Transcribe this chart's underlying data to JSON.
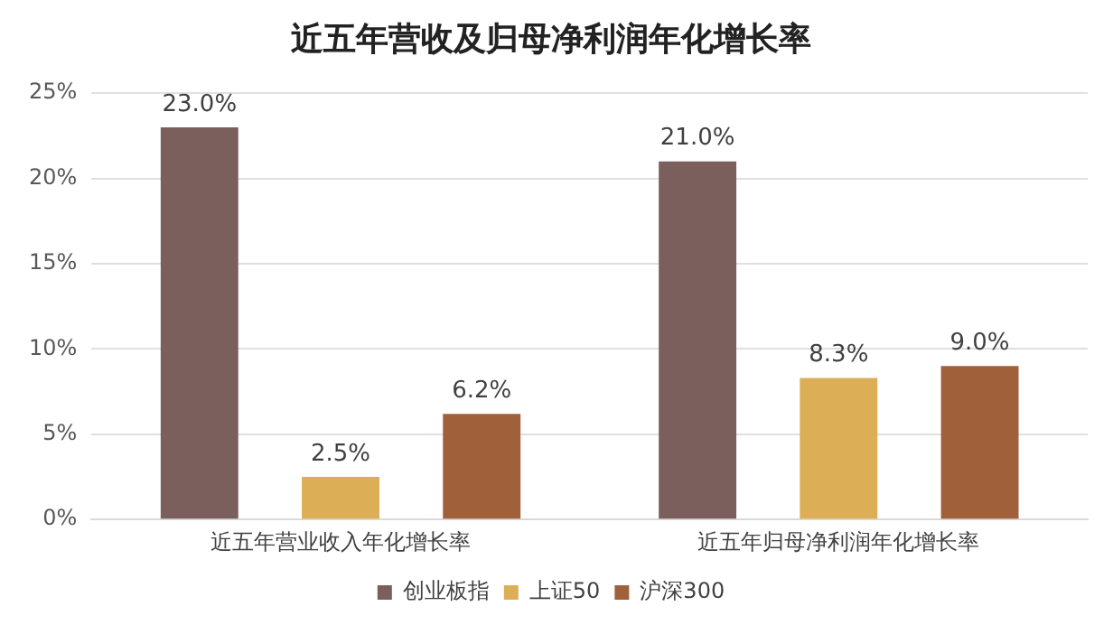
{
  "chart_data": {
    "type": "bar",
    "title": "近五年营收及归母净利润年化增长率",
    "categories": [
      "近五年营业收入年化增长率",
      "近五年归母净利润年化增长率"
    ],
    "series": [
      {
        "name": "创业板指",
        "color": "#7b5f5c",
        "values": [
          23.0,
          21.0
        ],
        "value_labels": [
          "23.0%",
          "21.0%"
        ]
      },
      {
        "name": "上证50",
        "color": "#dcae55",
        "values": [
          2.5,
          8.3
        ],
        "value_labels": [
          "2.5%",
          "8.3%"
        ]
      },
      {
        "name": "沪深300",
        "color": "#a0613a",
        "values": [
          6.2,
          9.0
        ],
        "value_labels": [
          "6.2%",
          "9.0%"
        ]
      }
    ],
    "ylim": [
      0,
      25
    ],
    "yticks": [
      {
        "value": 0,
        "label": "0%"
      },
      {
        "value": 5,
        "label": "5%"
      },
      {
        "value": 10,
        "label": "10%"
      },
      {
        "value": 15,
        "label": "15%"
      },
      {
        "value": 20,
        "label": "20%"
      },
      {
        "value": 25,
        "label": "25%"
      }
    ],
    "grid": "y",
    "legend": "bottom"
  }
}
